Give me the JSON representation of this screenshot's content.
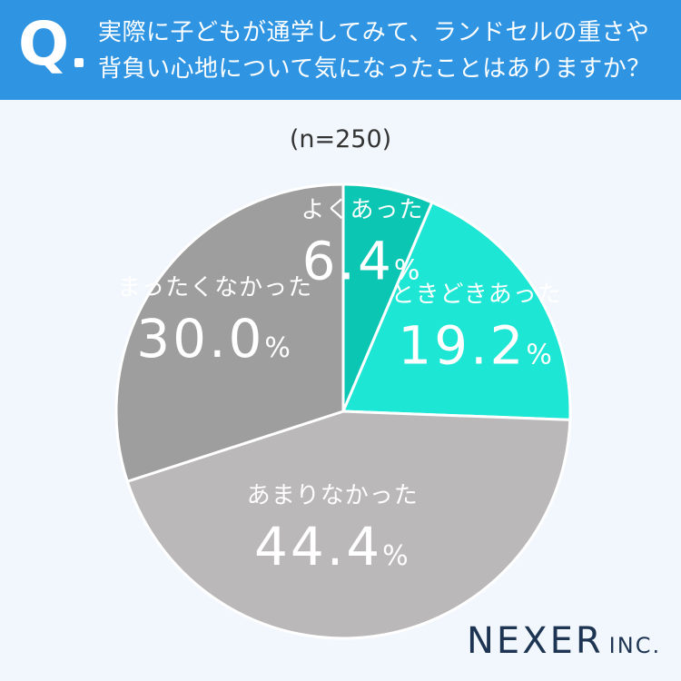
{
  "header": {
    "q_mark": "Q",
    "question": "実際に子どもが通学してみて、ランドセルの重さや背負い心地について気になったことはありますか？"
  },
  "sample_size": "(n=250)",
  "chart_data": {
    "type": "pie",
    "categories": [
      "よくあった",
      "ときどきあった",
      "あまりなかった",
      "まったくなかった"
    ],
    "values": [
      6.4,
      19.2,
      44.4,
      30.0
    ],
    "value_labels": [
      "6.4",
      "19.2",
      "44.4",
      "30.0"
    ],
    "unit": "%",
    "colors": [
      "#0bc6b2",
      "#1de6d5",
      "#bbb8ba",
      "#9f9e9e"
    ],
    "label_colors": [
      "#ffffff",
      "#ffffff",
      "#ffffff",
      "#ffffff"
    ],
    "start": "12 o'clock",
    "direction": "clockwise"
  },
  "brand": {
    "name": "NEXER",
    "suffix": "INC."
  }
}
